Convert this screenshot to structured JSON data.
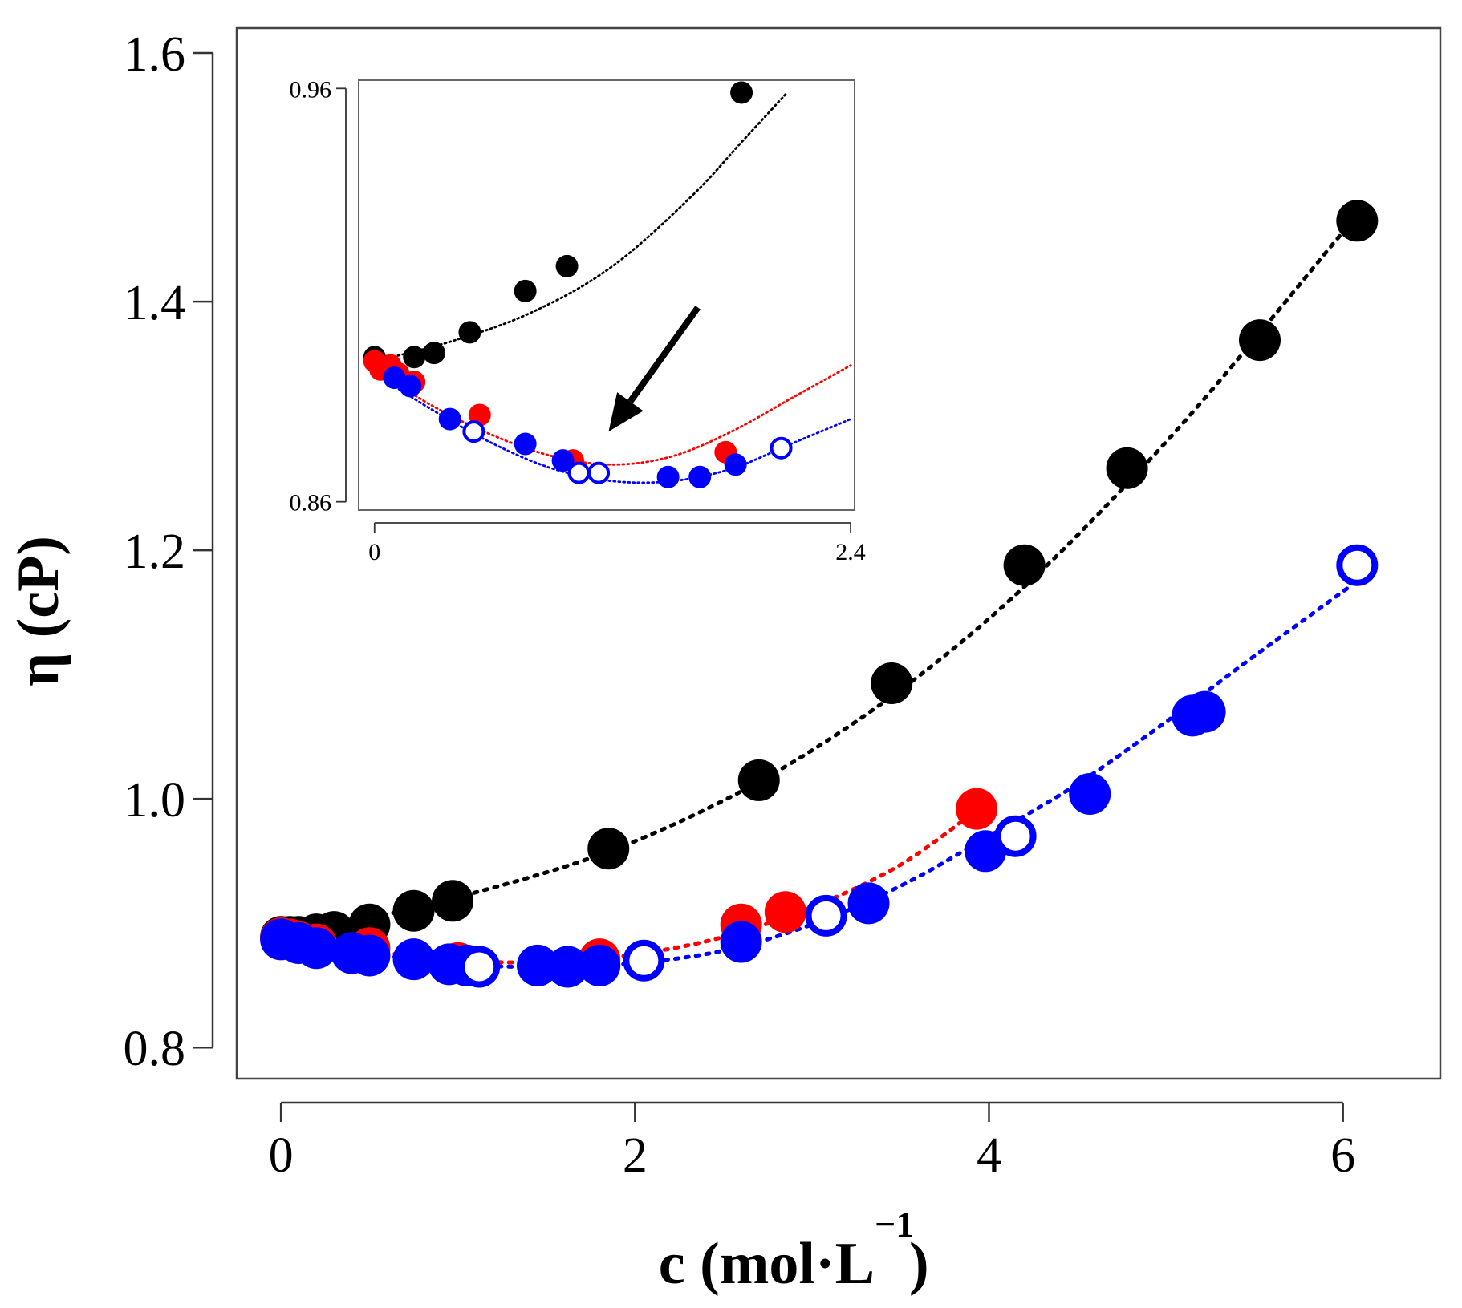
{
  "chart_data": [
    {
      "id": "main",
      "type": "scatter",
      "title": "",
      "xlabel": "c (mol·L",
      "xlabel_sup": "−1",
      "xlabel_close": ")",
      "ylabel": "η (cP)",
      "xlim": [
        -0.25,
        6.55
      ],
      "ylim": [
        0.775,
        1.62
      ],
      "xticks": [
        0,
        2,
        4,
        6
      ],
      "xtick_labels": [
        "0",
        "2",
        "4",
        "6"
      ],
      "yticks": [
        0.8,
        1.0,
        1.2,
        1.4,
        1.6
      ],
      "ytick_labels": [
        "0.8",
        "1.0",
        "1.2",
        "1.4",
        "1.6"
      ],
      "grid": false,
      "series": [
        {
          "name": "black-filled",
          "color": "#000000",
          "marker": "filled",
          "fit_points": [
            [
              0,
              0.889
            ],
            [
              1,
              0.921
            ],
            [
              2,
              0.966
            ],
            [
              3,
              1.039
            ],
            [
              4,
              1.145
            ],
            [
              5,
              1.287
            ],
            [
              6,
              1.456
            ]
          ],
          "points": [
            [
              0.0,
              0.889
            ],
            [
              0.05,
              0.889
            ],
            [
              0.1,
              0.889
            ],
            [
              0.2,
              0.891
            ],
            [
              0.3,
              0.893
            ],
            [
              0.5,
              0.899
            ],
            [
              0.75,
              0.91
            ],
            [
              0.97,
              0.918
            ],
            [
              1.85,
              0.96
            ],
            [
              2.7,
              1.015
            ],
            [
              3.45,
              1.093
            ],
            [
              4.2,
              1.188
            ],
            [
              4.78,
              1.266
            ],
            [
              5.53,
              1.369
            ],
            [
              6.08,
              1.465
            ]
          ]
        },
        {
          "name": "red-filled",
          "color": "#ff0000",
          "marker": "filled",
          "fit_points": [
            [
              0,
              0.888
            ],
            [
              0.5,
              0.878
            ],
            [
              1,
              0.87
            ],
            [
              1.5,
              0.869
            ],
            [
              2,
              0.875
            ],
            [
              2.5,
              0.889
            ],
            [
              3,
              0.913
            ],
            [
              3.5,
              0.947
            ],
            [
              3.95,
              0.993
            ]
          ],
          "points": [
            [
              0.0,
              0.888
            ],
            [
              0.05,
              0.887
            ],
            [
              0.1,
              0.885
            ],
            [
              0.2,
              0.883
            ],
            [
              0.5,
              0.88
            ],
            [
              1.0,
              0.868
            ],
            [
              1.8,
              0.871
            ],
            [
              2.6,
              0.899
            ],
            [
              2.85,
              0.909
            ],
            [
              3.93,
              0.992
            ]
          ]
        },
        {
          "name": "blue-filled",
          "color": "#0000ff",
          "marker": "filled",
          "fit_points": [
            [
              0,
              0.887
            ],
            [
              0.5,
              0.876
            ],
            [
              1,
              0.867
            ],
            [
              1.5,
              0.865
            ],
            [
              2,
              0.868
            ],
            [
              2.5,
              0.878
            ],
            [
              3,
              0.899
            ],
            [
              3.5,
              0.93
            ],
            [
              4,
              0.97
            ],
            [
              4.5,
              1.012
            ],
            [
              5,
              1.062
            ],
            [
              5.5,
              1.115
            ],
            [
              6.05,
              1.172
            ]
          ],
          "points": [
            [
              0.0,
              0.887
            ],
            [
              0.1,
              0.884
            ],
            [
              0.2,
              0.88
            ],
            [
              0.4,
              0.876
            ],
            [
              0.5,
              0.874
            ],
            [
              0.75,
              0.871
            ],
            [
              0.95,
              0.867
            ],
            [
              1.05,
              0.866
            ],
            [
              1.45,
              0.866
            ],
            [
              1.62,
              0.865
            ],
            [
              1.8,
              0.866
            ],
            [
              2.6,
              0.885
            ],
            [
              3.32,
              0.916
            ],
            [
              3.98,
              0.958
            ],
            [
              4.57,
              1.004
            ],
            [
              5.15,
              1.067
            ],
            [
              5.22,
              1.07
            ]
          ]
        },
        {
          "name": "blue-open",
          "color": "#0000ff",
          "marker": "open",
          "points": [
            [
              1.12,
              0.865
            ],
            [
              2.05,
              0.87
            ],
            [
              3.08,
              0.906
            ],
            [
              4.15,
              0.97
            ],
            [
              6.08,
              1.188
            ]
          ]
        }
      ]
    },
    {
      "id": "inset",
      "type": "scatter",
      "title": "",
      "xlim": [
        -0.08,
        2.42
      ],
      "ylim": [
        0.858,
        0.962
      ],
      "xticks": [
        0,
        2.4
      ],
      "xtick_labels": [
        "0",
        "2.4"
      ],
      "yticks": [
        0.86,
        0.96
      ],
      "ytick_labels": [
        "0.86",
        "0.96"
      ],
      "grid": false,
      "annotation": "arrow pointing to the viscosity minimum",
      "arrow": {
        "from": [
          1.63,
          0.907
        ],
        "to": [
          1.18,
          0.877
        ]
      },
      "series": [
        {
          "name": "black-filled",
          "color": "#000000",
          "marker": "filled",
          "fit_points": [
            [
              0,
              0.894
            ],
            [
              0.4,
              0.899
            ],
            [
              0.8,
              0.906
            ],
            [
              1.2,
              0.917
            ],
            [
              1.6,
              0.934
            ],
            [
              1.85,
              0.947
            ],
            [
              2.08,
              0.959
            ]
          ],
          "points": [
            [
              0.0,
              0.895
            ],
            [
              0.2,
              0.895
            ],
            [
              0.3,
              0.896
            ],
            [
              0.48,
              0.901
            ],
            [
              0.76,
              0.911
            ],
            [
              0.97,
              0.917
            ],
            [
              1.85,
              0.959
            ]
          ]
        },
        {
          "name": "red-filled",
          "color": "#ff0000",
          "marker": "filled",
          "fit_points": [
            [
              0,
              0.892
            ],
            [
              0.3,
              0.883
            ],
            [
              0.6,
              0.876
            ],
            [
              0.9,
              0.871
            ],
            [
              1.2,
              0.869
            ],
            [
              1.5,
              0.871
            ],
            [
              1.8,
              0.877
            ],
            [
              2.1,
              0.885
            ],
            [
              2.4,
              0.893
            ]
          ],
          "points": [
            [
              0.0,
              0.894
            ],
            [
              0.03,
              0.892
            ],
            [
              0.08,
              0.893
            ],
            [
              0.12,
              0.891
            ],
            [
              0.2,
              0.889
            ],
            [
              0.53,
              0.881
            ],
            [
              1.0,
              0.87
            ],
            [
              1.77,
              0.872
            ]
          ]
        },
        {
          "name": "blue-filled",
          "color": "#0000ff",
          "marker": "filled",
          "fit_points": [
            [
              0,
              0.891
            ],
            [
              0.3,
              0.882
            ],
            [
              0.6,
              0.874
            ],
            [
              0.9,
              0.868
            ],
            [
              1.2,
              0.865
            ],
            [
              1.5,
              0.865
            ],
            [
              1.8,
              0.868
            ],
            [
              2.1,
              0.874
            ],
            [
              2.4,
              0.88
            ]
          ],
          "points": [
            [
              0.1,
              0.89
            ],
            [
              0.18,
              0.888
            ],
            [
              0.38,
              0.88
            ],
            [
              0.76,
              0.874
            ],
            [
              0.95,
              0.87
            ],
            [
              1.48,
              0.866
            ],
            [
              1.64,
              0.866
            ],
            [
              1.82,
              0.869
            ]
          ]
        },
        {
          "name": "blue-open",
          "color": "#0000ff",
          "marker": "open",
          "points": [
            [
              0.5,
              0.877
            ],
            [
              1.03,
              0.867
            ],
            [
              1.13,
              0.867
            ],
            [
              2.05,
              0.873
            ]
          ]
        }
      ]
    }
  ]
}
